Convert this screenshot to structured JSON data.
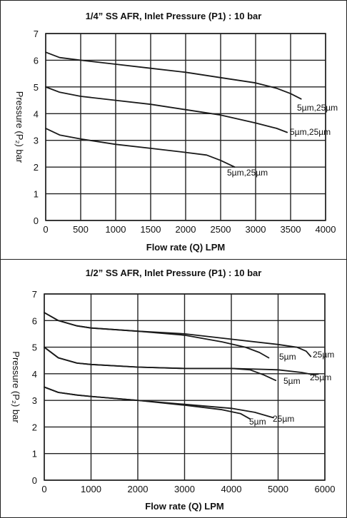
{
  "chart_data": [
    {
      "type": "line",
      "title": "1/4” SS AFR, Inlet Pressure (P1) : 10 bar",
      "xlabel": "Flow rate (Q) LPM",
      "ylabel": "Pressure (P₂) bar",
      "xlim": [
        0,
        4000
      ],
      "ylim": [
        0,
        7
      ],
      "xticks": [
        0,
        500,
        1000,
        1500,
        2000,
        2500,
        3000,
        3500,
        4000
      ],
      "yticks": [
        0,
        1,
        2,
        3,
        4,
        5,
        6,
        7
      ],
      "grid": true,
      "series": [
        {
          "annotation": "5µm,25µm",
          "points": [
            [
              0,
              6.3
            ],
            [
              200,
              6.1
            ],
            [
              500,
              6.0
            ],
            [
              1000,
              5.85
            ],
            [
              1500,
              5.7
            ],
            [
              2000,
              5.55
            ],
            [
              2500,
              5.35
            ],
            [
              3000,
              5.15
            ],
            [
              3300,
              4.95
            ],
            [
              3500,
              4.75
            ],
            [
              3650,
              4.55
            ]
          ]
        },
        {
          "annotation": "5µm,25µm",
          "points": [
            [
              0,
              5.0
            ],
            [
              200,
              4.8
            ],
            [
              500,
              4.65
            ],
            [
              1000,
              4.5
            ],
            [
              1500,
              4.35
            ],
            [
              2000,
              4.15
            ],
            [
              2500,
              3.95
            ],
            [
              3000,
              3.65
            ],
            [
              3300,
              3.45
            ],
            [
              3450,
              3.3
            ]
          ]
        },
        {
          "annotation": "5µm,25µm",
          "points": [
            [
              0,
              3.45
            ],
            [
              200,
              3.2
            ],
            [
              500,
              3.05
            ],
            [
              1000,
              2.85
            ],
            [
              1500,
              2.7
            ],
            [
              2000,
              2.55
            ],
            [
              2300,
              2.45
            ],
            [
              2500,
              2.25
            ],
            [
              2700,
              2.0
            ]
          ]
        }
      ]
    },
    {
      "type": "line",
      "title": "1/2” SS AFR, Inlet Pressure (P1) : 10 bar",
      "xlabel": "Flow rate (Q) LPM",
      "ylabel": "Pressure (P₂) bar",
      "xlim": [
        0,
        6000
      ],
      "ylim": [
        0,
        7
      ],
      "xticks": [
        0,
        1000,
        2000,
        3000,
        4000,
        5000,
        6000
      ],
      "yticks": [
        0,
        1,
        2,
        3,
        4,
        5,
        6,
        7
      ],
      "grid": true,
      "series": [
        {
          "annotation": "25µm",
          "points": [
            [
              0,
              6.3
            ],
            [
              300,
              6.0
            ],
            [
              700,
              5.8
            ],
            [
              1000,
              5.72
            ],
            [
              2000,
              5.6
            ],
            [
              3000,
              5.5
            ],
            [
              4000,
              5.3
            ],
            [
              5000,
              5.1
            ],
            [
              5400,
              5.0
            ],
            [
              5600,
              4.85
            ],
            [
              5700,
              4.65
            ]
          ]
        },
        {
          "annotation": "5µm",
          "points": [
            [
              0,
              6.3
            ],
            [
              300,
              6.0
            ],
            [
              700,
              5.8
            ],
            [
              1000,
              5.72
            ],
            [
              2000,
              5.6
            ],
            [
              3000,
              5.45
            ],
            [
              3800,
              5.2
            ],
            [
              4300,
              5.0
            ],
            [
              4600,
              4.8
            ],
            [
              4800,
              4.6
            ]
          ]
        },
        {
          "annotation": "25µm",
          "points": [
            [
              0,
              5.0
            ],
            [
              300,
              4.6
            ],
            [
              700,
              4.4
            ],
            [
              1000,
              4.35
            ],
            [
              2000,
              4.25
            ],
            [
              3000,
              4.2
            ],
            [
              4000,
              4.2
            ],
            [
              5000,
              4.15
            ],
            [
              5500,
              4.05
            ],
            [
              5800,
              3.95
            ]
          ]
        },
        {
          "annotation": "5µm",
          "points": [
            [
              0,
              5.0
            ],
            [
              300,
              4.6
            ],
            [
              700,
              4.4
            ],
            [
              1000,
              4.35
            ],
            [
              2000,
              4.25
            ],
            [
              3000,
              4.2
            ],
            [
              4000,
              4.2
            ],
            [
              4400,
              4.15
            ],
            [
              4700,
              3.95
            ],
            [
              4950,
              3.75
            ]
          ]
        },
        {
          "annotation": "25µm",
          "points": [
            [
              0,
              3.5
            ],
            [
              300,
              3.3
            ],
            [
              700,
              3.2
            ],
            [
              1000,
              3.15
            ],
            [
              2000,
              3.0
            ],
            [
              3000,
              2.85
            ],
            [
              4000,
              2.7
            ],
            [
              4500,
              2.55
            ],
            [
              4900,
              2.35
            ]
          ]
        },
        {
          "annotation": "5µm",
          "points": [
            [
              0,
              3.5
            ],
            [
              300,
              3.3
            ],
            [
              700,
              3.2
            ],
            [
              1000,
              3.15
            ],
            [
              2000,
              3.0
            ],
            [
              3000,
              2.82
            ],
            [
              3800,
              2.65
            ],
            [
              4200,
              2.5
            ],
            [
              4400,
              2.3
            ]
          ]
        }
      ]
    }
  ]
}
